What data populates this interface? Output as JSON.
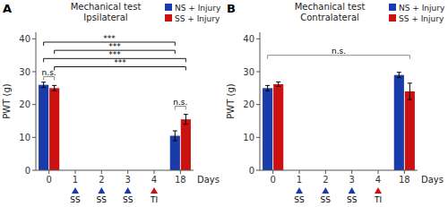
{
  "chart_data": [
    {
      "type": "bar",
      "panel_label": "A",
      "title": "Mechanical test",
      "subtitle": "Ipsilateral",
      "x_label": "Days",
      "y_label": "PWT (g)",
      "categories": [
        "0",
        "1",
        "2",
        "3",
        "4",
        "18"
      ],
      "series": [
        {
          "name": "NS + Injury",
          "color": "#1a3caa",
          "values": [
            26.0,
            null,
            null,
            null,
            null,
            10.5
          ],
          "errors": [
            0.8,
            null,
            null,
            null,
            null,
            1.5
          ]
        },
        {
          "name": "SS + Injury",
          "color": "#cc1111",
          "values": [
            25.0,
            null,
            null,
            null,
            null,
            15.5
          ],
          "errors": [
            0.8,
            null,
            null,
            null,
            null,
            1.5
          ]
        }
      ],
      "ylim": [
        0,
        42
      ],
      "yticks": [
        0,
        10,
        20,
        30,
        40
      ],
      "legend": "upper right",
      "brackets": [
        {
          "label": "***",
          "y": 39.0,
          "color": "black",
          "from": {
            "series": "NS + Injury",
            "category": "0"
          },
          "to": {
            "series": "NS + Injury",
            "category": "18"
          }
        },
        {
          "label": "***",
          "y": 36.5,
          "color": "black",
          "from": {
            "series": "SS + Injury",
            "category": "0"
          },
          "to": {
            "series": "NS + Injury",
            "category": "18"
          }
        },
        {
          "label": "***",
          "y": 34.0,
          "color": "black",
          "from": {
            "series": "NS + Injury",
            "category": "0"
          },
          "to": {
            "series": "SS + Injury",
            "category": "18"
          }
        },
        {
          "label": "***",
          "y": 31.5,
          "color": "black",
          "from": {
            "series": "SS + Injury",
            "category": "0"
          },
          "to": {
            "series": "SS + Injury",
            "category": "18"
          }
        },
        {
          "label": "n.s.",
          "y": 28.5,
          "color": "gray",
          "from": {
            "series": "NS + Injury",
            "category": "0"
          },
          "to": {
            "series": "SS + Injury",
            "category": "0"
          }
        },
        {
          "label": "n.s.",
          "y": 19.5,
          "color": "gray",
          "from": {
            "series": "NS + Injury",
            "category": "18"
          },
          "to": {
            "series": "SS + Injury",
            "category": "18"
          }
        }
      ],
      "markers": [
        {
          "at": "1",
          "label": "SS",
          "color": "#1a3caa"
        },
        {
          "at": "2",
          "label": "SS",
          "color": "#1a3caa"
        },
        {
          "at": "3",
          "label": "SS",
          "color": "#1a3caa"
        },
        {
          "at": "4",
          "label": "TI",
          "color": "#cc1111"
        }
      ]
    },
    {
      "type": "bar",
      "panel_label": "B",
      "title": "Mechanical test",
      "subtitle": "Contralateral",
      "x_label": "Days",
      "y_label": "PWT (g)",
      "categories": [
        "0",
        "1",
        "2",
        "3",
        "4",
        "18"
      ],
      "series": [
        {
          "name": "NS + Injury",
          "color": "#1a3caa",
          "values": [
            25.0,
            null,
            null,
            null,
            null,
            29.0
          ],
          "errors": [
            0.8,
            null,
            null,
            null,
            null,
            0.8
          ]
        },
        {
          "name": "SS + Injury",
          "color": "#cc1111",
          "values": [
            26.2,
            null,
            null,
            null,
            null,
            24.0
          ],
          "errors": [
            0.7,
            null,
            null,
            null,
            null,
            2.5
          ]
        }
      ],
      "ylim": [
        0,
        42
      ],
      "yticks": [
        0,
        10,
        20,
        30,
        40
      ],
      "legend": "upper right",
      "brackets": [
        {
          "label": "n.s.",
          "y": 35.0,
          "color": "gray",
          "from": {
            "series": "NS + Injury",
            "category": "0"
          },
          "to": {
            "series": "SS + Injury",
            "category": "18"
          }
        }
      ],
      "markers": [
        {
          "at": "1",
          "label": "SS",
          "color": "#1a3caa"
        },
        {
          "at": "2",
          "label": "SS",
          "color": "#1a3caa"
        },
        {
          "at": "3",
          "label": "SS",
          "color": "#1a3caa"
        },
        {
          "at": "4",
          "label": "TI",
          "color": "#cc1111"
        }
      ]
    }
  ]
}
